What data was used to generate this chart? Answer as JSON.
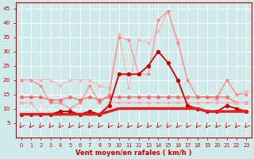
{
  "x": [
    0,
    1,
    2,
    3,
    4,
    5,
    6,
    7,
    8,
    9,
    10,
    11,
    12,
    13,
    14,
    15,
    16,
    17,
    18,
    19,
    20,
    21,
    22,
    23
  ],
  "series": [
    {
      "name": "rafales_lightest",
      "color": "#ffb3b3",
      "linewidth": 0.8,
      "markersize": 2.0,
      "y": [
        20,
        20,
        20,
        20,
        18,
        20,
        20,
        20,
        18,
        17,
        36,
        17,
        34,
        33,
        37,
        44,
        34,
        20,
        14,
        14,
        13,
        20,
        15,
        16
      ]
    },
    {
      "name": "rafales_light",
      "color": "#ff8888",
      "linewidth": 0.8,
      "markersize": 2.0,
      "y": [
        20,
        20,
        18,
        12,
        12,
        10,
        12,
        18,
        12,
        15,
        35,
        34,
        22,
        22,
        41,
        44,
        33,
        20,
        14,
        14,
        14,
        20,
        15,
        15
      ]
    },
    {
      "name": "rafales_medium",
      "color": "#ff6666",
      "linewidth": 0.9,
      "markersize": 2.5,
      "y": [
        14,
        14,
        14,
        13,
        13,
        14,
        13,
        14,
        13,
        14,
        14,
        14,
        14,
        14,
        14,
        14,
        14,
        14,
        14,
        14,
        14,
        14,
        12,
        12
      ]
    },
    {
      "name": "vent_lightest",
      "color": "#ffcccc",
      "linewidth": 0.8,
      "markersize": 2.0,
      "y": [
        12,
        12,
        12,
        8,
        8,
        8,
        8,
        8,
        8,
        12,
        12,
        12,
        12,
        12,
        12,
        12,
        12,
        12,
        12,
        12,
        12,
        12,
        12,
        12
      ]
    },
    {
      "name": "vent_light",
      "color": "#ffaaaa",
      "linewidth": 0.8,
      "markersize": 2.0,
      "y": [
        12,
        12,
        8,
        8,
        8,
        8,
        8,
        8,
        8,
        12,
        12,
        12,
        12,
        12,
        12,
        12,
        12,
        12,
        12,
        12,
        12,
        12,
        12,
        12
      ]
    },
    {
      "name": "vent_main",
      "color": "#cc0000",
      "linewidth": 1.3,
      "markersize": 2.8,
      "y": [
        8,
        8,
        8,
        8,
        9,
        9,
        8,
        9,
        8,
        11,
        22,
        22,
        22,
        25,
        30,
        26,
        20,
        11,
        10,
        9,
        9,
        11,
        10,
        9
      ]
    },
    {
      "name": "vent_bold",
      "color": "#dd2222",
      "linewidth": 2.5,
      "markersize": 0,
      "y": [
        8,
        8,
        8,
        8,
        8,
        8,
        8,
        8,
        8,
        9,
        10,
        10,
        10,
        10,
        10,
        10,
        10,
        10,
        10,
        9,
        9,
        9,
        9,
        9
      ]
    }
  ],
  "xlabel": "Vent moyen/en rafales ( km/h )",
  "xlim": [
    -0.5,
    23.5
  ],
  "ylim": [
    0,
    47
  ],
  "yticks": [
    5,
    10,
    15,
    20,
    25,
    30,
    35,
    40,
    45
  ],
  "xticks": [
    0,
    1,
    2,
    3,
    4,
    5,
    6,
    7,
    8,
    9,
    10,
    11,
    12,
    13,
    14,
    15,
    16,
    17,
    18,
    19,
    20,
    21,
    22,
    23
  ],
  "bg_color": "#ceeaea",
  "grid_color": "#b0d8d8",
  "spine_color": "#cc0000",
  "tick_color": "#cc0000",
  "label_color": "#cc0000",
  "arrow_color": "#cc0000"
}
